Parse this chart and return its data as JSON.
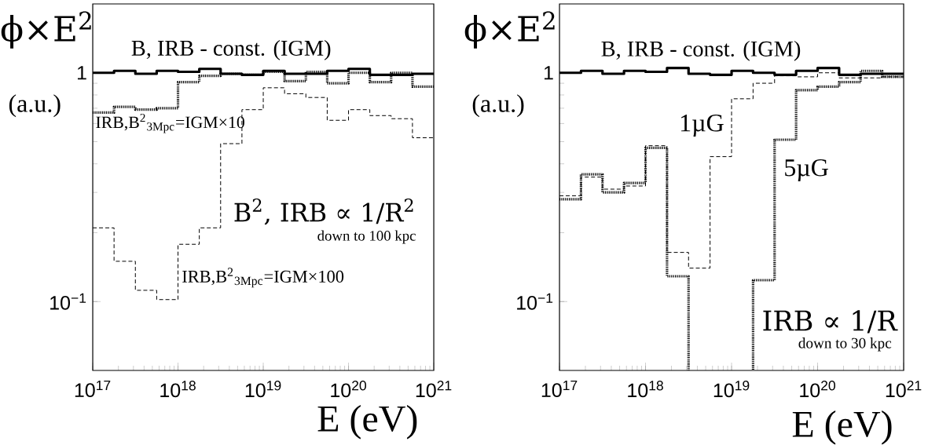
{
  "chart_data": [
    {
      "type": "step",
      "ylabel": "ϕ×E$^{2}$",
      "xlabel": "E (eV)",
      "log": "xy",
      "x": [
        1e+17,
        1.778e+17,
        3.162e+17,
        5.623e+17,
        1e+18,
        1.778e+18,
        3.162e+18,
        5.623e+18,
        1e+19,
        1.778e+19,
        3.162e+19,
        5.623e+19,
        1e+20,
        1.778e+20,
        3.162e+20,
        5.623e+20,
        1e+21
      ],
      "series": [
        {
          "name": "B, IRB - const. (IGM)",
          "color": "#000000",
          "line_style": "solid",
          "values": [
            1.0,
            1.02,
            0.99,
            1.02,
            1.01,
            1.04,
            0.99,
            0.98,
            1.02,
            0.99,
            0.99,
            1.02,
            1.04,
            0.98,
            0.98,
            0.99,
            0.99
          ]
        },
        {
          "name": "IRB,B$^{2}$$_{3Mpc}$=IGM×10",
          "color": "#000000",
          "line_style": "dotted",
          "values": [
            0.67,
            0.71,
            0.69,
            0.7,
            0.91,
            0.97,
            0.99,
            0.98,
            1.01,
            0.92,
            1.01,
            0.9,
            1.0,
            0.91,
            1.0,
            0.87,
            0.87
          ]
        },
        {
          "name": "IRB,B$^{2}$$_{3Mpc}$=IGM×100",
          "color": "#000000",
          "line_style": "dashed",
          "values": [
            0.21,
            0.15,
            0.112,
            0.102,
            0.178,
            0.21,
            0.49,
            0.69,
            0.86,
            0.81,
            0.78,
            0.62,
            0.69,
            0.65,
            0.63,
            0.52,
            0.52
          ]
        }
      ],
      "annotations": [
        "(a.u.)",
        "B$^{2}$, IRB ∝ 1/R$^{2}$",
        "down to 100 kpc"
      ],
      "xlim": [
        1e+17,
        1e+21
      ],
      "ylim": [
        0.05,
        2
      ],
      "xticks": [
        {
          "value": 1e+17,
          "label": "10$^{17}$"
        },
        {
          "value": 1e+18,
          "label": "10$^{18}$"
        },
        {
          "value": 1e+19,
          "label": "10$^{19}$"
        },
        {
          "value": 1e+20,
          "label": "10$^{20}$"
        },
        {
          "value": 1e+21,
          "label": "10$^{21}$"
        }
      ],
      "yticks": [
        {
          "value": 0.1,
          "label": "10$^{−1}$"
        },
        1
      ]
    },
    {
      "type": "step",
      "ylabel": "ϕ×E$^{2}$",
      "xlabel": "E (eV)",
      "log": "xy",
      "x": [
        1e+17,
        1.778e+17,
        3.162e+17,
        5.623e+17,
        1e+18,
        1.778e+18,
        3.162e+18,
        5.623e+18,
        1e+19,
        1.778e+19,
        3.162e+19,
        5.623e+19,
        1e+20,
        1.778e+20,
        3.162e+20,
        5.623e+20,
        1e+21
      ],
      "series": [
        {
          "name": "B, IRB - const. (IGM)",
          "color": "#000000",
          "line_style": "solid",
          "values": [
            1.0,
            1.02,
            0.99,
            1.02,
            1.01,
            1.05,
            0.99,
            0.98,
            1.02,
            1.0,
            0.98,
            1.02,
            1.05,
            0.98,
            0.99,
            0.99,
            0.99
          ]
        },
        {
          "name": "1µG",
          "color": "#000000",
          "line_style": "dashed",
          "values": [
            0.29,
            0.35,
            0.31,
            0.32,
            0.48,
            0.164,
            0.14,
            0.43,
            0.77,
            0.9,
            0.97,
            0.96,
            1.0,
            0.95,
            0.95,
            0.96,
            0.96
          ]
        },
        {
          "name": "5µG",
          "color": "#000000",
          "line_style": "dotted",
          "values": [
            0.28,
            0.36,
            0.3,
            0.33,
            0.47,
            0.129,
            null,
            null,
            null,
            0.124,
            0.51,
            0.84,
            0.87,
            0.91,
            1.02,
            0.96,
            0.96
          ]
        }
      ],
      "annotations": [
        "(a.u.)",
        "IRB ∝ 1/R",
        "down to 30 kpc"
      ],
      "xlim": [
        1e+17,
        1e+21
      ],
      "ylim": [
        0.05,
        2
      ],
      "xticks": [
        {
          "value": 1e+17,
          "label": "10$^{17}$"
        },
        {
          "value": 1e+18,
          "label": "10$^{18}$"
        },
        {
          "value": 1e+19,
          "label": "10$^{19}$"
        },
        {
          "value": 1e+20,
          "label": "10$^{20}$"
        },
        {
          "value": 1e+21,
          "label": "10$^{21}$"
        }
      ],
      "yticks": [
        {
          "value": 0.1,
          "label": "10$^{−1}$"
        },
        1
      ]
    }
  ]
}
